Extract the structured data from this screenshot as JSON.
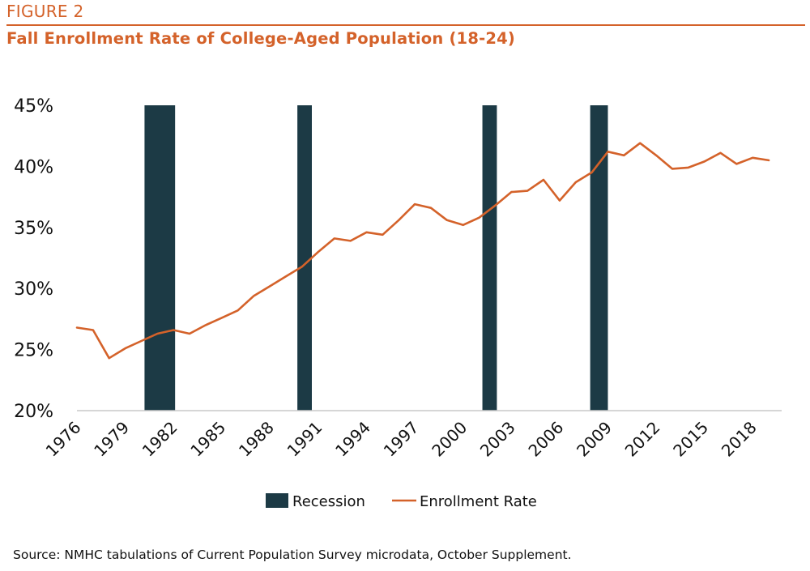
{
  "figure_label": "FIGURE 2",
  "title": "Fall Enrollment Rate of College-Aged Population (18-24)",
  "source": "Source: NMHC tabulations of Current Population Survey microdata, October Supplement.",
  "colors": {
    "accent": "#d4622a",
    "recession": "#1c3a45",
    "text": "#111111"
  },
  "chart_data": {
    "type": "line",
    "title": "Fall Enrollment Rate of College-Aged Population (18-24)",
    "xlabel": "",
    "ylabel": "",
    "ylim": [
      20,
      45
    ],
    "xlim": [
      1976,
      2019
    ],
    "y_ticks": [
      "20%",
      "25%",
      "30%",
      "35%",
      "40%",
      "45%"
    ],
    "y_tick_values": [
      20,
      25,
      30,
      35,
      40,
      45
    ],
    "x_ticks": [
      "1976",
      "1979",
      "1982",
      "1985",
      "1988",
      "1991",
      "1994",
      "1997",
      "2000",
      "2003",
      "2006",
      "2009",
      "2012",
      "2015",
      "2018"
    ],
    "x_tick_values": [
      1976,
      1979,
      1982,
      1985,
      1988,
      1991,
      1994,
      1997,
      2000,
      2003,
      2006,
      2009,
      2012,
      2015,
      2018
    ],
    "legend": [
      "Recession",
      "Enrollment Rate"
    ],
    "legend_position": "bottom",
    "grid": false,
    "recessions": [
      {
        "start": 1980.2,
        "end": 1982.1
      },
      {
        "start": 1989.7,
        "end": 1990.6
      },
      {
        "start": 2001.2,
        "end": 2002.1
      },
      {
        "start": 2007.9,
        "end": 2009.0
      }
    ],
    "series": [
      {
        "name": "Enrollment Rate",
        "x": [
          1976,
          1977,
          1978,
          1979,
          1980,
          1981,
          1982,
          1983,
          1984,
          1985,
          1986,
          1987,
          1988,
          1989,
          1990,
          1991,
          1992,
          1993,
          1994,
          1995,
          1996,
          1997,
          1998,
          1999,
          2000,
          2001,
          2002,
          2003,
          2004,
          2005,
          2006,
          2007,
          2008,
          2009,
          2010,
          2011,
          2012,
          2013,
          2014,
          2015,
          2016,
          2017,
          2018,
          2019
        ],
        "values": [
          26.8,
          26.6,
          24.3,
          25.1,
          25.7,
          26.3,
          26.6,
          26.3,
          27.0,
          27.6,
          28.2,
          29.4,
          30.2,
          31.0,
          31.8,
          33.0,
          34.1,
          33.9,
          34.6,
          34.4,
          35.6,
          36.9,
          36.6,
          35.6,
          35.2,
          35.8,
          36.8,
          37.9,
          38.0,
          38.9,
          37.2,
          38.7,
          39.5,
          41.2,
          40.9,
          41.9,
          40.9,
          39.8,
          39.9,
          40.4,
          41.1,
          40.2,
          40.7,
          40.5
        ]
      }
    ]
  }
}
